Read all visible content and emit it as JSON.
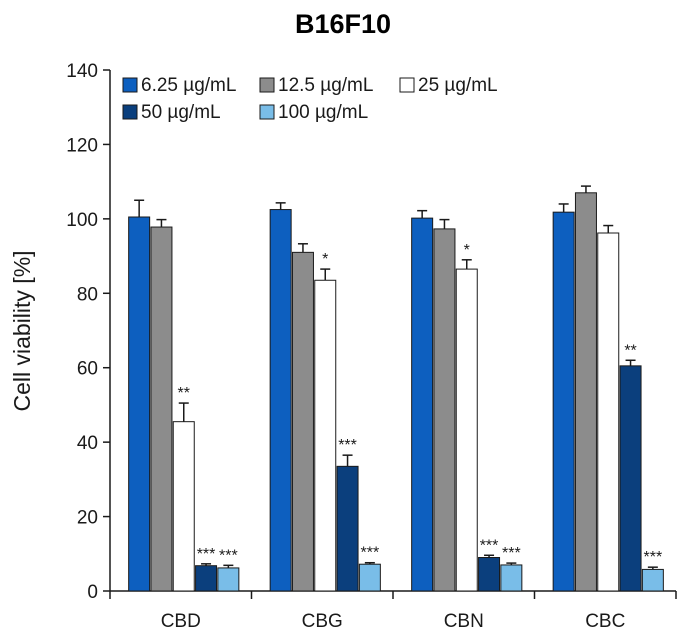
{
  "chart_data": {
    "type": "bar",
    "title": "B16F10",
    "xlabel": "",
    "ylabel": "Cell viability [%]",
    "ylim": [
      0,
      140
    ],
    "yticks": [
      0,
      20,
      40,
      60,
      80,
      100,
      120,
      140
    ],
    "grid": false,
    "legend_position": "top",
    "categories": [
      "CBD",
      "CBG",
      "CBN",
      "CBC"
    ],
    "series": [
      {
        "name": "6.25 µg/mL",
        "color": "#0d5fbf",
        "values": [
          100.5,
          102.5,
          100.2,
          101.8
        ],
        "errors": [
          4.5,
          1.8,
          2.0,
          2.2
        ],
        "significance": [
          "",
          "",
          "",
          ""
        ]
      },
      {
        "name": "12.5 µg/mL",
        "color": "#8c8c8c",
        "values": [
          97.8,
          91.0,
          97.3,
          107.0
        ],
        "errors": [
          2.0,
          2.3,
          2.5,
          1.8
        ],
        "significance": [
          "",
          "",
          "",
          ""
        ]
      },
      {
        "name": "25 µg/mL",
        "color": "#ffffff",
        "values": [
          45.5,
          83.5,
          86.5,
          96.2
        ],
        "errors": [
          5.0,
          3.0,
          2.5,
          2.0
        ],
        "significance": [
          "**",
          "*",
          "*",
          ""
        ]
      },
      {
        "name": "50 µg/mL",
        "color": "#0b3f7d",
        "values": [
          6.8,
          33.5,
          9.0,
          60.5
        ],
        "errors": [
          0.5,
          3.0,
          0.6,
          1.5
        ],
        "significance": [
          "***",
          "***",
          "***",
          "**"
        ]
      },
      {
        "name": "100 µg/mL",
        "color": "#79bde8",
        "values": [
          6.2,
          7.2,
          7.0,
          5.8
        ],
        "errors": [
          0.7,
          0.4,
          0.5,
          0.6
        ],
        "significance": [
          "***",
          "***",
          "***",
          "***"
        ]
      }
    ]
  }
}
